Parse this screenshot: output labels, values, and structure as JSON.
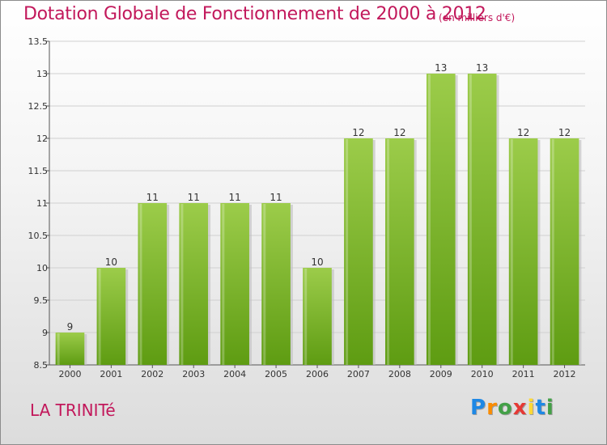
{
  "header": {
    "title": "Dotation Globale de Fonctionnement de 2000 à 2012",
    "subtitle": "(en milliers d'€)"
  },
  "footer": {
    "commune": "LA TRINITé",
    "logo": [
      {
        "char": "P",
        "color": "#1e88e5"
      },
      {
        "char": "r",
        "color": "#fb8c00"
      },
      {
        "char": "o",
        "color": "#43a047"
      },
      {
        "char": "x",
        "color": "#e53935"
      },
      {
        "char": "i",
        "color": "#fdd835"
      },
      {
        "char": "t",
        "color": "#1e88e5"
      },
      {
        "char": "i",
        "color": "#43a047"
      }
    ]
  },
  "chart_data": {
    "type": "bar",
    "categories": [
      "2000",
      "2001",
      "2002",
      "2003",
      "2004",
      "2005",
      "2006",
      "2007",
      "2008",
      "2009",
      "2010",
      "2011",
      "2012"
    ],
    "values": [
      9,
      10,
      11,
      11,
      11,
      11,
      10,
      12,
      12,
      13,
      13,
      12,
      12
    ],
    "data_labels": [
      "9",
      "10",
      "11",
      "11",
      "11",
      "11",
      "10",
      "12",
      "12",
      "13",
      "13",
      "12",
      "12"
    ],
    "ylim": [
      8.5,
      13.5
    ],
    "yticks": [
      8.5,
      9,
      9.5,
      10,
      10.5,
      11,
      11.5,
      12,
      12.5,
      13,
      13.5
    ],
    "ytick_labels": [
      "8.5",
      "9",
      "9.5",
      "10",
      "10.5",
      "11",
      "11.5",
      "12",
      "12.5",
      "13",
      "13.5"
    ],
    "grid": true,
    "bar_color_top": "#9ccc4a",
    "bar_color_bottom": "#5e9c12"
  }
}
